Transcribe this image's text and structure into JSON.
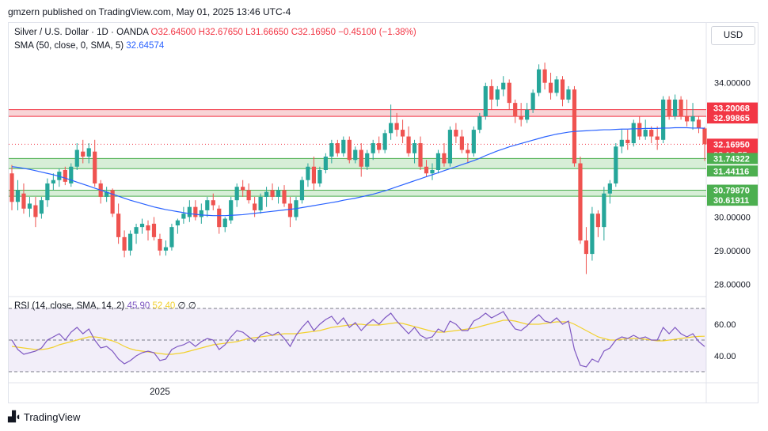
{
  "header": {
    "publisher": "gmzern published on TradingView.com, May 01, 2025 13:46 UTC-4"
  },
  "legend": {
    "symbol": "Silver / U.S. Dollar · 1D · OANDA",
    "open": "O32.64500",
    "high": "H32.67650",
    "low": "L31.66650",
    "close": "C32.16950",
    "change": "−0.45100 (−1.38%)",
    "sma_label": "SMA (50, close, 0, SMA, 5)",
    "sma_value": "32.64574"
  },
  "rsi_legend": {
    "label": "RSI (14, close, SMA, 14, 2)",
    "rsi_value": "45.90",
    "sma_value": "52.40",
    "extra": "∅  ∅"
  },
  "currency_button": "USD",
  "footer": {
    "brand": "TradingView",
    "logo": "tv-logo-icon"
  },
  "colors": {
    "up": "#26a69a",
    "down": "#ef5350",
    "sma": "#2962ff",
    "rsi": "#7e57c2",
    "rsi_sma": "#f2d12e",
    "resistance_zone": "#f6c5c8",
    "support_zone": "#c9e8c9"
  },
  "chart_data": {
    "type": "candlestick",
    "price_axis": {
      "ticks": [
        28,
        29,
        30,
        34
      ],
      "tick_labels": [
        "28.00000",
        "29.00000",
        "30.00000",
        "34.00000"
      ],
      "ylim": [
        27.7,
        35.1
      ]
    },
    "x_axis": {
      "labels": [
        {
          "text": "2025",
          "index": 25
        }
      ]
    },
    "price_labels": [
      {
        "text": "33.20068",
        "value": 33.20068,
        "kind": "resistance"
      },
      {
        "text": "32.99865",
        "value": 32.99865,
        "kind": "resistance"
      },
      {
        "text": "32.16950",
        "value": 32.1695,
        "kind": "current",
        "countdown": "03:13:55"
      },
      {
        "text": "31.74322",
        "value": 31.74322,
        "kind": "support"
      },
      {
        "text": "31.44116",
        "value": 31.44116,
        "kind": "support"
      },
      {
        "text": "30.79870",
        "value": 30.7987,
        "kind": "support"
      },
      {
        "text": "30.61911",
        "value": 30.61911,
        "kind": "support"
      }
    ],
    "zones": [
      {
        "name": "resistance",
        "from": 32.99865,
        "to": 33.20068
      },
      {
        "name": "support-upper",
        "from": 31.44116,
        "to": 31.74322
      },
      {
        "name": "support-lower",
        "from": 30.61911,
        "to": 30.7987
      }
    ],
    "current_price": 32.1695,
    "candles": [
      [
        31.3,
        31.55,
        30.2,
        30.45
      ],
      [
        30.45,
        31.1,
        30.2,
        30.8
      ],
      [
        30.7,
        31.0,
        30.1,
        30.25
      ],
      [
        30.25,
        30.6,
        30.0,
        30.4
      ],
      [
        30.35,
        30.6,
        29.7,
        30.0
      ],
      [
        30.1,
        30.6,
        29.95,
        30.5
      ],
      [
        30.5,
        31.15,
        30.3,
        31.0
      ],
      [
        31.0,
        31.3,
        30.8,
        31.1
      ],
      [
        31.1,
        31.45,
        30.9,
        31.35
      ],
      [
        31.4,
        31.5,
        30.95,
        31.05
      ],
      [
        31.0,
        31.6,
        30.9,
        31.5
      ],
      [
        31.5,
        32.2,
        31.4,
        32.0
      ],
      [
        31.95,
        32.3,
        31.6,
        31.8
      ],
      [
        31.8,
        32.2,
        31.6,
        32.05
      ],
      [
        31.95,
        32.3,
        30.9,
        31.0
      ],
      [
        31.0,
        31.1,
        30.4,
        30.6
      ],
      [
        30.6,
        30.9,
        30.45,
        30.75
      ],
      [
        30.8,
        30.85,
        30.0,
        30.1
      ],
      [
        30.1,
        30.4,
        29.2,
        29.4
      ],
      [
        29.4,
        29.6,
        28.8,
        29.0
      ],
      [
        29.0,
        29.6,
        28.85,
        29.5
      ],
      [
        29.5,
        29.8,
        29.2,
        29.7
      ],
      [
        29.7,
        29.95,
        29.5,
        29.8
      ],
      [
        29.75,
        29.9,
        29.3,
        29.6
      ],
      [
        29.8,
        30.0,
        29.3,
        29.4
      ],
      [
        29.35,
        29.5,
        28.85,
        29.0
      ],
      [
        29.0,
        29.3,
        28.85,
        29.1
      ],
      [
        29.1,
        29.8,
        29.0,
        29.7
      ],
      [
        29.75,
        29.95,
        29.5,
        29.9
      ],
      [
        29.95,
        30.3,
        29.8,
        30.1
      ],
      [
        30.0,
        30.5,
        29.85,
        30.3
      ],
      [
        30.3,
        30.5,
        29.9,
        30.0
      ],
      [
        30.0,
        30.4,
        29.8,
        30.2
      ],
      [
        30.2,
        30.6,
        30.0,
        30.5
      ],
      [
        30.5,
        30.7,
        30.2,
        30.35
      ],
      [
        30.25,
        30.35,
        29.5,
        29.7
      ],
      [
        29.7,
        30.0,
        29.55,
        29.95
      ],
      [
        29.9,
        30.6,
        29.8,
        30.5
      ],
      [
        30.5,
        31.0,
        30.3,
        30.9
      ],
      [
        30.9,
        31.1,
        30.6,
        30.8
      ],
      [
        30.8,
        31.0,
        30.4,
        30.5
      ],
      [
        30.4,
        30.6,
        30.0,
        30.2
      ],
      [
        30.2,
        30.7,
        30.1,
        30.6
      ],
      [
        30.6,
        30.9,
        30.3,
        30.75
      ],
      [
        30.8,
        31.0,
        30.5,
        30.6
      ],
      [
        30.6,
        30.9,
        30.4,
        30.8
      ],
      [
        30.8,
        30.95,
        30.3,
        30.4
      ],
      [
        30.4,
        30.6,
        29.7,
        30.0
      ],
      [
        30.0,
        30.6,
        29.9,
        30.5
      ],
      [
        30.5,
        31.2,
        30.4,
        31.1
      ],
      [
        31.1,
        31.6,
        30.9,
        31.5
      ],
      [
        31.5,
        31.8,
        30.8,
        31.0
      ],
      [
        31.0,
        31.5,
        30.9,
        31.4
      ],
      [
        31.4,
        31.9,
        31.3,
        31.8
      ],
      [
        31.8,
        32.3,
        31.6,
        32.2
      ],
      [
        32.2,
        32.3,
        31.8,
        31.9
      ],
      [
        31.9,
        32.4,
        31.8,
        32.3
      ],
      [
        32.3,
        32.4,
        31.6,
        31.7
      ],
      [
        31.7,
        32.1,
        31.6,
        32.0
      ],
      [
        32.0,
        32.2,
        31.2,
        31.5
      ],
      [
        31.5,
        32.0,
        31.4,
        31.9
      ],
      [
        31.9,
        32.3,
        31.7,
        32.2
      ],
      [
        32.2,
        32.4,
        31.9,
        32.0
      ],
      [
        32.0,
        32.6,
        31.9,
        32.5
      ],
      [
        32.5,
        33.35,
        32.3,
        32.8
      ],
      [
        32.8,
        33.1,
        32.4,
        32.6
      ],
      [
        32.6,
        32.9,
        32.2,
        32.4
      ],
      [
        32.4,
        32.7,
        31.8,
        31.9
      ],
      [
        31.9,
        32.3,
        31.6,
        32.2
      ],
      [
        32.2,
        32.4,
        31.4,
        31.5
      ],
      [
        31.5,
        31.7,
        31.2,
        31.3
      ],
      [
        31.3,
        31.6,
        31.1,
        31.4
      ],
      [
        31.4,
        32.0,
        31.3,
        31.9
      ],
      [
        31.9,
        32.2,
        31.5,
        31.6
      ],
      [
        31.6,
        32.7,
        31.5,
        32.6
      ],
      [
        32.6,
        32.8,
        32.2,
        32.4
      ],
      [
        32.4,
        32.6,
        31.9,
        32.0
      ],
      [
        32.0,
        32.2,
        31.6,
        31.9
      ],
      [
        31.9,
        32.7,
        31.8,
        32.6
      ],
      [
        32.6,
        33.1,
        32.5,
        33.0
      ],
      [
        33.0,
        34.0,
        32.9,
        33.9
      ],
      [
        33.9,
        34.1,
        33.2,
        33.5
      ],
      [
        33.5,
        33.9,
        33.3,
        33.8
      ],
      [
        33.8,
        34.2,
        33.6,
        34.0
      ],
      [
        34.0,
        34.1,
        33.2,
        33.4
      ],
      [
        33.4,
        33.5,
        32.8,
        33.0
      ],
      [
        33.0,
        33.4,
        32.7,
        32.9
      ],
      [
        32.9,
        33.4,
        32.8,
        33.2
      ],
      [
        33.2,
        33.8,
        33.1,
        33.7
      ],
      [
        33.7,
        34.55,
        33.6,
        34.4
      ],
      [
        34.4,
        34.6,
        33.8,
        34.0
      ],
      [
        34.0,
        34.3,
        33.5,
        33.7
      ],
      [
        33.7,
        34.2,
        33.6,
        34.1
      ],
      [
        34.1,
        34.2,
        33.3,
        33.5
      ],
      [
        33.5,
        33.9,
        33.4,
        33.8
      ],
      [
        33.8,
        33.9,
        31.5,
        31.6
      ],
      [
        31.6,
        31.8,
        29.2,
        29.3
      ],
      [
        29.3,
        29.7,
        28.3,
        28.9
      ],
      [
        28.9,
        30.3,
        28.7,
        30.1
      ],
      [
        30.1,
        30.2,
        29.4,
        29.7
      ],
      [
        29.7,
        30.9,
        29.3,
        30.7
      ],
      [
        30.7,
        31.1,
        30.4,
        31.0
      ],
      [
        31.0,
        32.2,
        30.9,
        32.1
      ],
      [
        32.1,
        32.6,
        31.9,
        32.3
      ],
      [
        32.3,
        32.6,
        32.0,
        32.2
      ],
      [
        32.2,
        32.9,
        32.1,
        32.8
      ],
      [
        32.8,
        33.0,
        32.3,
        32.4
      ],
      [
        32.4,
        32.9,
        32.3,
        32.6
      ],
      [
        32.6,
        32.7,
        32.2,
        32.4
      ],
      [
        32.4,
        32.7,
        32.0,
        32.3
      ],
      [
        32.3,
        33.6,
        32.2,
        33.5
      ],
      [
        33.5,
        33.6,
        32.9,
        33.0
      ],
      [
        33.0,
        33.65,
        32.9,
        33.5
      ],
      [
        33.5,
        33.6,
        32.9,
        33.0
      ],
      [
        33.0,
        33.5,
        32.7,
        32.85
      ],
      [
        32.85,
        33.4,
        32.6,
        33.0
      ],
      [
        32.9,
        33.0,
        32.5,
        32.64
      ],
      [
        32.64,
        32.68,
        31.67,
        32.17
      ]
    ],
    "sma": [
      31.5,
      31.48,
      31.45,
      31.42,
      31.38,
      31.34,
      31.3,
      31.26,
      31.21,
      31.16,
      31.1,
      31.04,
      30.98,
      30.92,
      30.86,
      30.8,
      30.74,
      30.68,
      30.62,
      30.56,
      30.5,
      30.45,
      30.4,
      30.35,
      30.3,
      30.26,
      30.22,
      30.19,
      30.16,
      30.13,
      30.1,
      30.08,
      30.06,
      30.05,
      30.04,
      30.04,
      30.04,
      30.05,
      30.06,
      30.07,
      30.09,
      30.11,
      30.13,
      30.15,
      30.17,
      30.19,
      30.21,
      30.23,
      30.25,
      30.28,
      30.31,
      30.34,
      30.37,
      30.4,
      30.43,
      30.46,
      30.5,
      30.53,
      30.56,
      30.6,
      30.64,
      30.68,
      30.73,
      30.78,
      30.84,
      30.9,
      30.96,
      31.02,
      31.08,
      31.14,
      31.2,
      31.26,
      31.32,
      31.38,
      31.44,
      31.5,
      31.56,
      31.62,
      31.68,
      31.75,
      31.83,
      31.9,
      31.97,
      32.03,
      32.09,
      32.14,
      32.19,
      32.24,
      32.29,
      32.34,
      32.39,
      32.43,
      32.47,
      32.5,
      32.53,
      32.55,
      32.56,
      32.57,
      32.58,
      32.59,
      32.6,
      32.6,
      32.61,
      32.62,
      32.62,
      32.63,
      32.63,
      32.64,
      32.64,
      32.64,
      32.65,
      32.65,
      32.66,
      32.66,
      32.66,
      32.65,
      32.65,
      32.64574
    ],
    "rsi": {
      "ticks": [
        40,
        60
      ],
      "tick_labels": [
        "40.00",
        "60.00"
      ],
      "ylim": [
        24,
        76
      ],
      "bands": [
        30,
        50,
        70
      ],
      "values": [
        50,
        44,
        41,
        42,
        43,
        45,
        50,
        52,
        54,
        50,
        55,
        58,
        54,
        57,
        50,
        45,
        46,
        43,
        38,
        35,
        37,
        40,
        42,
        43,
        42,
        37,
        38,
        44,
        46,
        47,
        49,
        46,
        49,
        51,
        50,
        44,
        47,
        52,
        56,
        55,
        52,
        49,
        53,
        55,
        53,
        55,
        51,
        46,
        53,
        58,
        62,
        56,
        60,
        63,
        65,
        60,
        64,
        58,
        61,
        56,
        60,
        63,
        60,
        64,
        67,
        62,
        58,
        54,
        58,
        53,
        51,
        52,
        57,
        55,
        62,
        60,
        56,
        56,
        62,
        64,
        67,
        64,
        66,
        68,
        62,
        57,
        56,
        59,
        63,
        66,
        62,
        61,
        64,
        60,
        62,
        44,
        34,
        33,
        38,
        36,
        43,
        45,
        50,
        52,
        51,
        53,
        51,
        52,
        50,
        50,
        58,
        54,
        58,
        54,
        52,
        54,
        49,
        45.9
      ],
      "sma_values": [
        46,
        45.5,
        45,
        44.5,
        44,
        44,
        44.5,
        45.5,
        47,
        48,
        49,
        50,
        51,
        52,
        52,
        51.5,
        50.5,
        49.5,
        48,
        46,
        44.5,
        43.5,
        43,
        42.5,
        42,
        41.5,
        41,
        41,
        41.5,
        42,
        43,
        44,
        45,
        46,
        47,
        47.5,
        48,
        48.5,
        49,
        50,
        51,
        51.5,
        52,
        52.5,
        53,
        53.5,
        54,
        54,
        54,
        54.5,
        55,
        55.5,
        56,
        57,
        58,
        58.5,
        59,
        59.5,
        60,
        60,
        59.5,
        59.5,
        59.5,
        60,
        60.5,
        61,
        60.5,
        59.5,
        58.5,
        57.5,
        56.5,
        55.5,
        55,
        55,
        55.5,
        56,
        56.5,
        57,
        57.5,
        58.5,
        59.5,
        60.5,
        61.5,
        62.5,
        62.5,
        62,
        61,
        60,
        60,
        60,
        60.5,
        61,
        61.5,
        61.5,
        61.5,
        60,
        58,
        56,
        54,
        52,
        51,
        50,
        50,
        50.5,
        51,
        51,
        51,
        50.5,
        50,
        49.5,
        49.5,
        50,
        50.5,
        51,
        51.5,
        52,
        52.3,
        52.4
      ]
    }
  }
}
